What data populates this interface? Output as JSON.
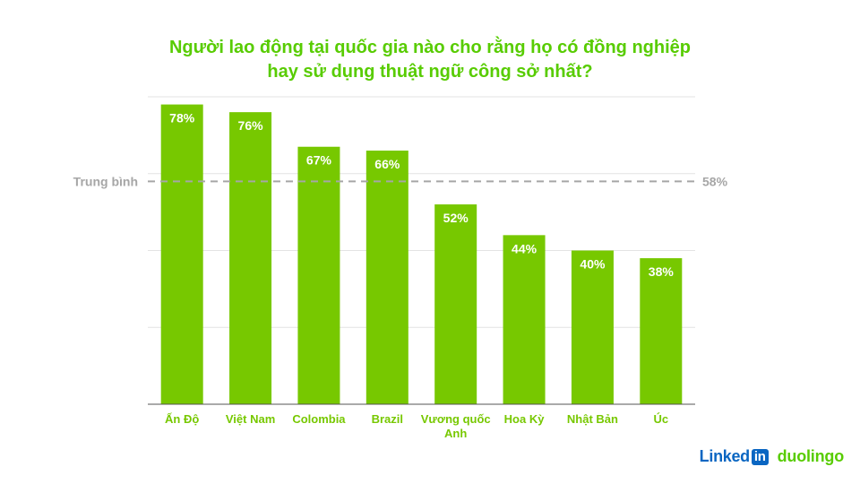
{
  "title_line1": "Người lao động tại quốc gia nào cho rằng họ có đồng nghiệp",
  "title_line2": "hay sử dụng thuật ngữ công sở nhất?",
  "colors": {
    "bar": "#77c800",
    "title": "#58cc02",
    "grid": "#e3e3e3",
    "average": "#a6a6a6",
    "axis": "#555555"
  },
  "logos": {
    "linkedin_word": "Linked",
    "linkedin_box": "in",
    "duolingo": "duolingo"
  },
  "chart_data": {
    "type": "bar",
    "categories": [
      [
        "Ấn Độ"
      ],
      [
        "Việt Nam"
      ],
      [
        "Colombia"
      ],
      [
        "Brazil"
      ],
      [
        "Vương quốc",
        "Anh"
      ],
      [
        "Hoa Kỳ"
      ],
      [
        "Nhật Bản"
      ],
      [
        "Úc"
      ]
    ],
    "values": [
      78,
      76,
      67,
      66,
      52,
      44,
      40,
      38
    ],
    "value_labels": [
      "78%",
      "76%",
      "67%",
      "66%",
      "52%",
      "44%",
      "40%",
      "38%"
    ],
    "ylim": [
      0,
      80
    ],
    "grid": true,
    "average": {
      "label": "Trung bình",
      "value": 58,
      "value_label": "58%"
    }
  }
}
